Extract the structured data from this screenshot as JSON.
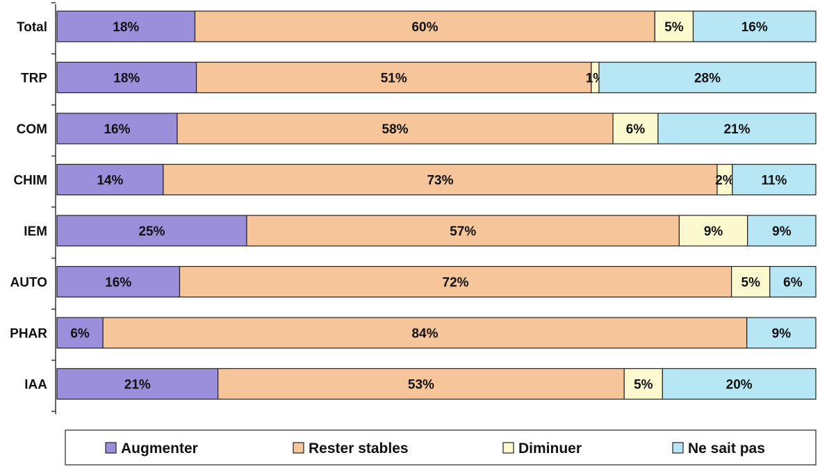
{
  "chart_data": {
    "type": "bar",
    "orientation": "horizontal",
    "stacked": true,
    "percent": true,
    "categories": [
      "Total",
      "TRP",
      "COM",
      "CHIM",
      "IEM",
      "AUTO",
      "PHAR",
      "IAA"
    ],
    "series": [
      {
        "name": "Augmenter",
        "color": "#9b8fdc",
        "values": [
          18,
          18,
          16,
          14,
          25,
          16,
          6,
          21
        ]
      },
      {
        "name": "Rester stables",
        "color": "#f7c59a",
        "values": [
          60,
          51,
          58,
          73,
          57,
          72,
          84,
          53
        ]
      },
      {
        "name": "Diminuer",
        "color": "#fdf9cf",
        "values": [
          5,
          1,
          6,
          2,
          9,
          5,
          0,
          5
        ]
      },
      {
        "name": "Ne sait pas",
        "color": "#b7e6f5",
        "values": [
          16,
          28,
          21,
          11,
          9,
          6,
          9,
          20
        ]
      }
    ],
    "data_labels": [
      [
        "18%",
        "60%",
        "5%",
        "16%"
      ],
      [
        "18%",
        "51%",
        "1%",
        "28%"
      ],
      [
        "16%",
        "58%",
        "6%",
        "21%"
      ],
      [
        "14%",
        "73%",
        "2%",
        "11%"
      ],
      [
        "25%",
        "57%",
        "9%",
        "9%"
      ],
      [
        "16%",
        "72%",
        "5%",
        "6%"
      ],
      [
        "6%",
        "84%",
        "",
        "9%"
      ],
      [
        "21%",
        "53%",
        "5%",
        "20%"
      ]
    ],
    "legend_position": "bottom",
    "grid": false
  }
}
